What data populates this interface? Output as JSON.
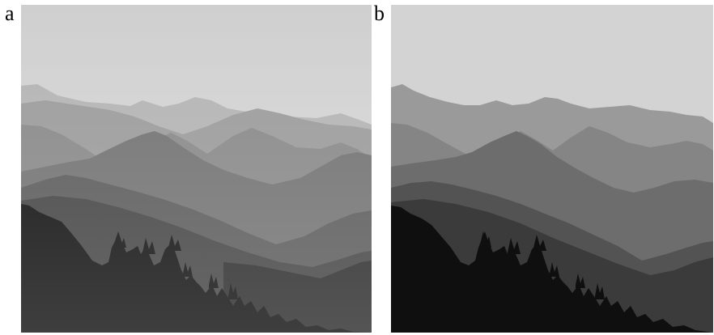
{
  "panels": [
    {
      "label": "a",
      "style": "continuous-tone grayscale landscape photograph"
    },
    {
      "label": "b",
      "style": "posterized (quantized) grayscale landscape"
    }
  ],
  "colors": {
    "background": "#ffffff",
    "label_text": "#000000"
  },
  "panel_a_tones": {
    "sky_top": "#cfcfcf",
    "sky_bottom": "#dcdcdc",
    "far_ridge": "#b5b5b5",
    "ridge_2": "#9d9d9d",
    "ridge_3": "#8b8b8b",
    "ridge_4": "#757575",
    "ridge_5": "#5e5e5e",
    "ridge_6": "#474747",
    "ridge_7": "#2f2f2f",
    "foreground": "#141414"
  },
  "panel_b_tones": {
    "sky": "#d3d3d3",
    "far_ridge": "#9a9a9a",
    "ridge_2": "#858585",
    "ridge_3": "#6d6d6d",
    "ridge_4": "#535353",
    "ridge_5": "#3b3b3b",
    "foreground": "#0f0f0f"
  }
}
